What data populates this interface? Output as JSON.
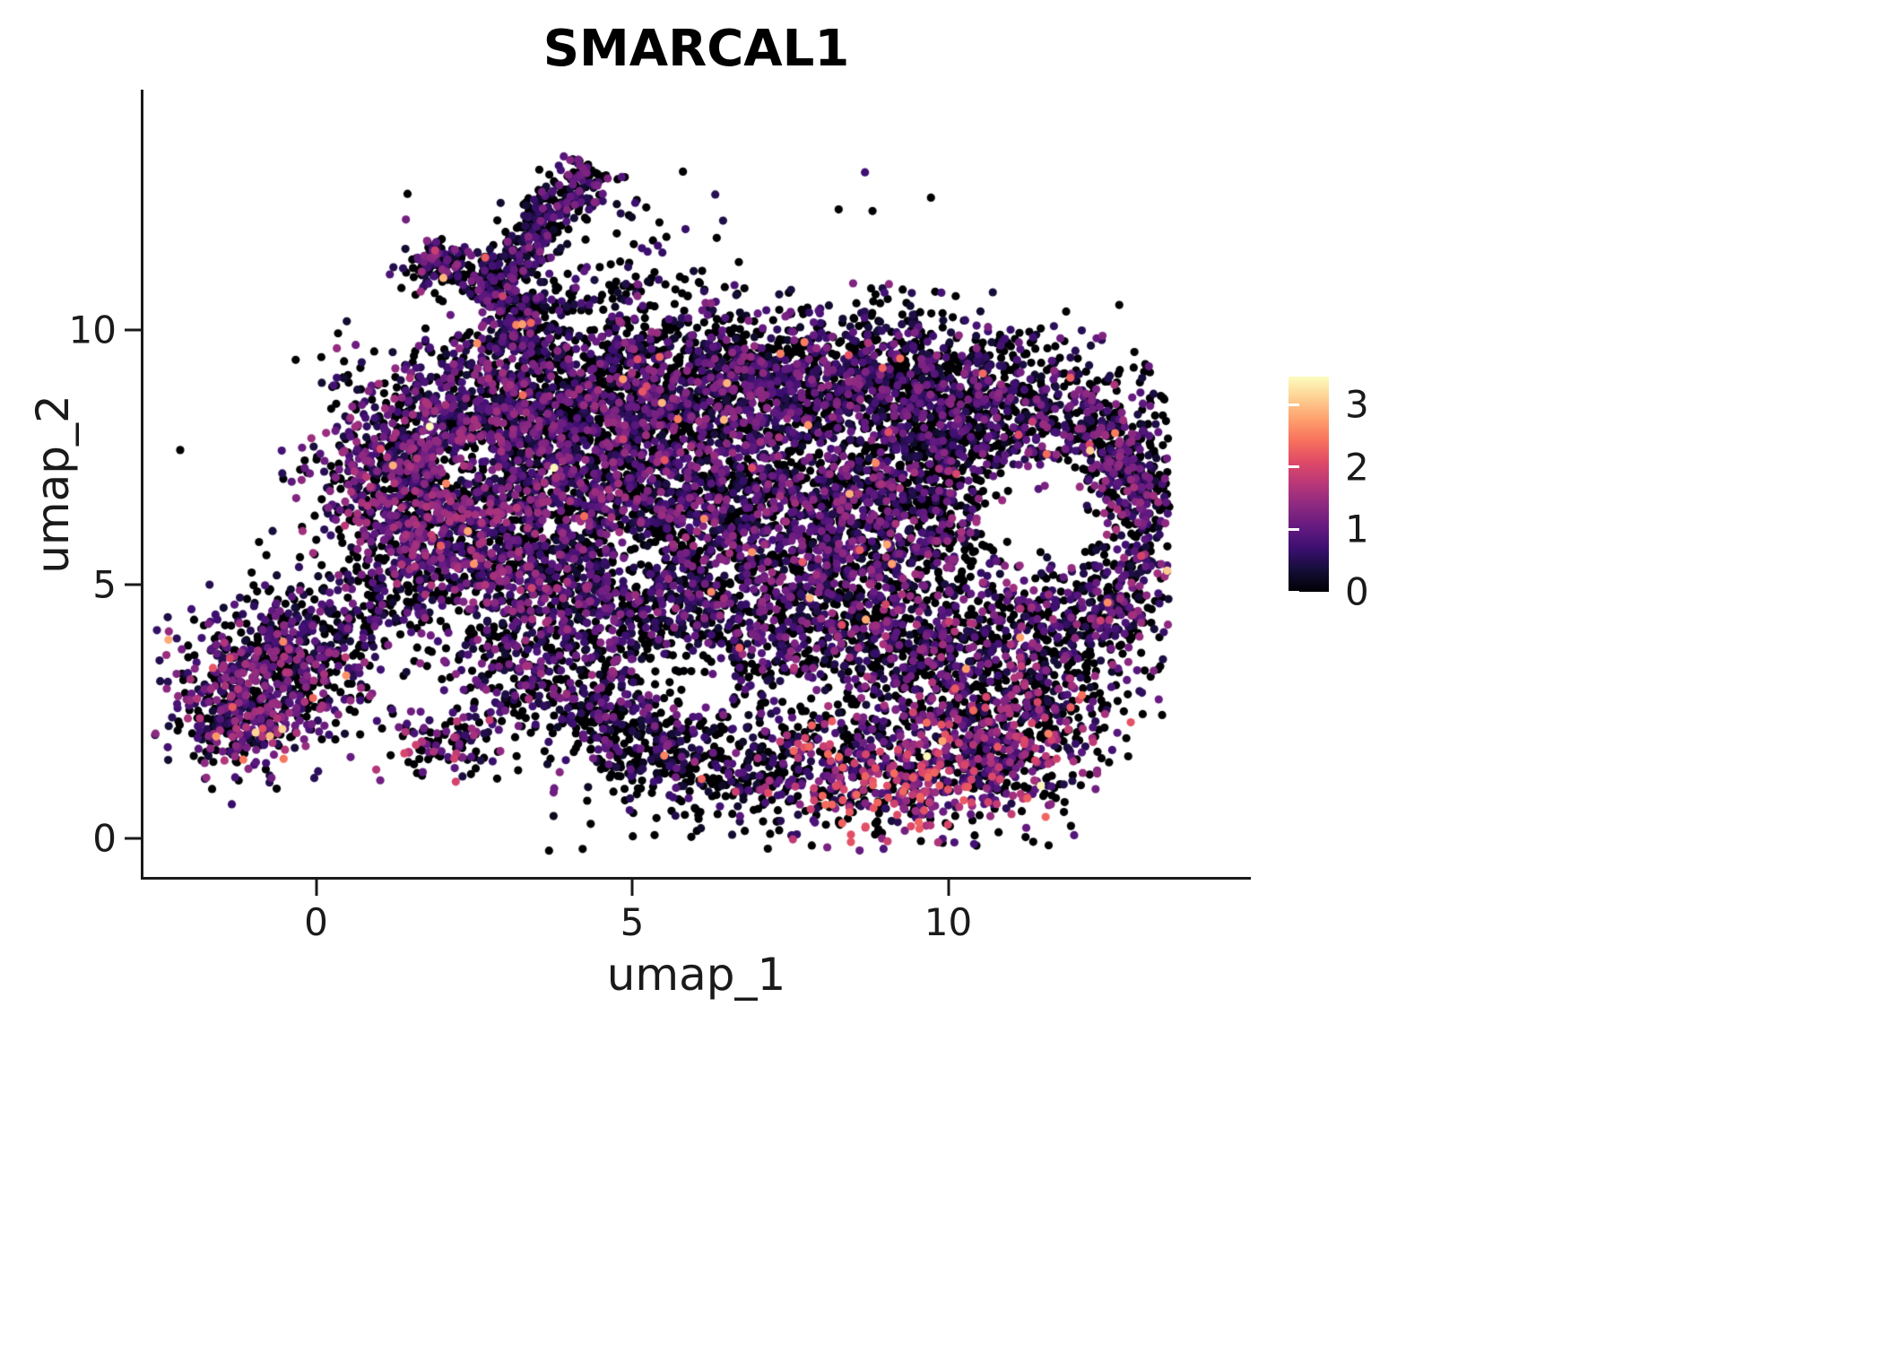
{
  "chart_data": {
    "type": "scatter",
    "title": "SMARCAL1",
    "xlabel": "umap_1",
    "ylabel": "umap_2",
    "x_tick_labels": [
      "0",
      "5",
      "10"
    ],
    "x_tick_values": [
      0,
      5,
      10
    ],
    "y_tick_labels": [
      "0",
      "5",
      "10"
    ],
    "y_tick_values": [
      0,
      5,
      10
    ],
    "xlim": [
      -2.9,
      14.8
    ],
    "ylim": [
      -0.8,
      14.9
    ],
    "grid": false,
    "legend_position": "right",
    "point_radius": 4.6,
    "seed": 42,
    "colorbar": {
      "tick_labels": [
        "0",
        "1",
        "2",
        "3"
      ],
      "tick_values": [
        0,
        1,
        2,
        3
      ],
      "vmax": 3.45,
      "colormap": "magma",
      "stops": [
        [
          0.0,
          "#000004"
        ],
        [
          0.1,
          "#140e36"
        ],
        [
          0.2,
          "#3b0f70"
        ],
        [
          0.3,
          "#641a80"
        ],
        [
          0.4,
          "#8c2981"
        ],
        [
          0.5,
          "#b73779"
        ],
        [
          0.6,
          "#de4968"
        ],
        [
          0.7,
          "#f7705c"
        ],
        [
          0.8,
          "#fe9f6d"
        ],
        [
          0.9,
          "#fecf92"
        ],
        [
          1.0,
          "#fcfdbf"
        ]
      ]
    },
    "bounds": {
      "xmin": -2.55,
      "xmax": 13.5,
      "ymin": -0.25,
      "ymax": 13.6
    },
    "clusters": [
      {
        "type": "gauss",
        "x": -0.95,
        "y": 2.9,
        "sx": 0.75,
        "sy": 0.75,
        "n": 520,
        "p0": 0.38,
        "vmean": 1.0
      },
      {
        "type": "gauss",
        "x": -0.2,
        "y": 3.8,
        "sx": 0.55,
        "sy": 0.5,
        "n": 200,
        "p0": 0.45,
        "vmean": 0.9
      },
      {
        "type": "gauss",
        "x": -1.35,
        "y": 2.2,
        "sx": 0.5,
        "sy": 0.4,
        "n": 150,
        "p0": 0.4,
        "vmean": 1.0
      },
      {
        "type": "gauss",
        "x": -0.3,
        "y": 4.4,
        "sx": 0.8,
        "sy": 0.5,
        "n": 80,
        "p0": 0.6,
        "vmean": 0.6
      },
      {
        "type": "strip",
        "x1": 2.55,
        "y1": 10.55,
        "x2": 4.35,
        "y2": 13.25,
        "sd": 0.22,
        "n": 430,
        "p0": 0.5,
        "vmean": 0.8
      },
      {
        "type": "gauss",
        "x": 1.95,
        "y": 11.3,
        "sx": 0.3,
        "sy": 0.22,
        "n": 130,
        "p0": 0.45,
        "vmean": 0.9
      },
      {
        "type": "strip",
        "x1": 2.9,
        "y1": 9.6,
        "x2": 3.5,
        "y2": 10.7,
        "sd": 0.3,
        "n": 150,
        "p0": 0.5,
        "vmean": 0.8
      },
      {
        "type": "gauss",
        "x": 4.7,
        "y": 11.4,
        "sx": 0.9,
        "sy": 0.8,
        "n": 80,
        "p0": 0.65,
        "vmean": 0.5
      },
      {
        "type": "gauss",
        "x": 4.2,
        "y": 10.3,
        "sx": 1.2,
        "sy": 0.5,
        "n": 90,
        "p0": 0.6,
        "vmean": 0.6
      },
      {
        "type": "gauss",
        "x": 1.3,
        "y": 7.2,
        "sx": 0.7,
        "sy": 0.9,
        "n": 600,
        "p0": 0.42,
        "vmean": 1.0
      },
      {
        "type": "gauss",
        "x": 2.6,
        "y": 8.3,
        "sx": 0.9,
        "sy": 0.8,
        "n": 650,
        "p0": 0.45,
        "vmean": 0.95
      },
      {
        "type": "gauss",
        "x": 4.6,
        "y": 8.8,
        "sx": 1.2,
        "sy": 0.75,
        "n": 800,
        "p0": 0.5,
        "vmean": 0.9
      },
      {
        "type": "gauss",
        "x": 6.8,
        "y": 9.0,
        "sx": 1.2,
        "sy": 0.7,
        "n": 750,
        "p0": 0.55,
        "vmean": 0.85
      },
      {
        "type": "gauss",
        "x": 8.8,
        "y": 9.0,
        "sx": 1.1,
        "sy": 0.7,
        "n": 650,
        "p0": 0.55,
        "vmean": 0.85
      },
      {
        "type": "gauss",
        "x": 10.6,
        "y": 8.6,
        "sx": 1.0,
        "sy": 0.7,
        "n": 550,
        "p0": 0.55,
        "vmean": 0.8
      },
      {
        "type": "gauss",
        "x": 12.2,
        "y": 7.6,
        "sx": 0.7,
        "sy": 0.8,
        "n": 420,
        "p0": 0.5,
        "vmean": 0.9
      },
      {
        "type": "gauss",
        "x": 2.2,
        "y": 6.2,
        "sx": 0.9,
        "sy": 0.9,
        "n": 600,
        "p0": 0.42,
        "vmean": 1.0
      },
      {
        "type": "gauss",
        "x": 4.3,
        "y": 6.6,
        "sx": 1.2,
        "sy": 1.1,
        "n": 850,
        "p0": 0.48,
        "vmean": 0.95
      },
      {
        "type": "gauss",
        "x": 6.5,
        "y": 6.6,
        "sx": 1.3,
        "sy": 1.1,
        "n": 900,
        "p0": 0.5,
        "vmean": 0.9
      },
      {
        "type": "gauss",
        "x": 8.8,
        "y": 6.2,
        "sx": 1.2,
        "sy": 1.1,
        "n": 800,
        "p0": 0.5,
        "vmean": 0.95
      },
      {
        "type": "gauss",
        "x": 10.4,
        "y": 6.9,
        "sx": 0.9,
        "sy": 0.8,
        "n": 450,
        "p0": 0.55,
        "vmean": 0.85
      },
      {
        "type": "gauss",
        "x": 12.85,
        "y": 5.9,
        "sx": 0.38,
        "sy": 1.15,
        "n": 330,
        "p0": 0.5,
        "vmean": 0.95
      },
      {
        "type": "gauss",
        "x": 12.1,
        "y": 4.6,
        "sx": 0.6,
        "sy": 0.6,
        "n": 250,
        "p0": 0.5,
        "vmean": 0.9
      },
      {
        "type": "gauss",
        "x": 3.4,
        "y": 4.6,
        "sx": 1.0,
        "sy": 0.9,
        "n": 550,
        "p0": 0.45,
        "vmean": 0.95
      },
      {
        "type": "gauss",
        "x": 5.6,
        "y": 4.2,
        "sx": 1.2,
        "sy": 0.9,
        "n": 500,
        "p0": 0.55,
        "vmean": 0.8
      },
      {
        "type": "gauss",
        "x": 7.8,
        "y": 4.2,
        "sx": 1.2,
        "sy": 0.9,
        "n": 520,
        "p0": 0.52,
        "vmean": 0.9
      },
      {
        "type": "gauss",
        "x": 9.9,
        "y": 3.7,
        "sx": 0.9,
        "sy": 0.9,
        "n": 450,
        "p0": 0.5,
        "vmean": 1.0
      },
      {
        "type": "gauss",
        "x": 11.4,
        "y": 3.0,
        "sx": 0.8,
        "sy": 0.8,
        "n": 350,
        "p0": 0.5,
        "vmean": 1.0
      },
      {
        "type": "gauss",
        "x": 9.3,
        "y": 1.4,
        "sx": 1.2,
        "sy": 0.75,
        "n": 600,
        "p0": 0.35,
        "vmean": 1.4
      },
      {
        "type": "gauss",
        "x": 7.0,
        "y": 1.3,
        "sx": 1.3,
        "sy": 0.6,
        "n": 350,
        "p0": 0.68,
        "vmean": 0.6
      },
      {
        "type": "gauss",
        "x": 5.0,
        "y": 2.4,
        "sx": 0.7,
        "sy": 0.6,
        "n": 220,
        "p0": 0.6,
        "vmean": 0.8
      },
      {
        "type": "gauss",
        "x": 10.9,
        "y": 1.8,
        "sx": 0.7,
        "sy": 0.6,
        "n": 280,
        "p0": 0.45,
        "vmean": 1.2
      },
      {
        "type": "gauss",
        "x": 2.0,
        "y": 1.95,
        "sx": 0.45,
        "sy": 0.35,
        "n": 110,
        "p0": 0.5,
        "vmean": 1.2
      },
      {
        "type": "gauss",
        "x": 3.3,
        "y": 2.9,
        "sx": 0.5,
        "sy": 0.4,
        "n": 90,
        "p0": 0.6,
        "vmean": 0.8
      },
      {
        "type": "strip",
        "x1": 3.8,
        "y1": 2.8,
        "x2": 6.0,
        "y2": 1.3,
        "sd": 0.3,
        "n": 130,
        "p0": 0.6,
        "vmean": 0.7
      },
      {
        "type": "gauss",
        "x": 1.2,
        "y": 4.9,
        "sx": 0.5,
        "sy": 0.5,
        "n": 90,
        "p0": 0.6,
        "vmean": 0.7
      },
      {
        "type": "gauss",
        "x": 6.5,
        "y": 6.0,
        "sx": 3.5,
        "sy": 2.8,
        "n": 260,
        "p0": 0.6,
        "vmean": 0.7
      },
      {
        "type": "gauss",
        "x": 12.95,
        "y": 7.1,
        "sx": 0.4,
        "sy": 0.5,
        "n": 150,
        "p0": 0.5,
        "vmean": 0.9
      }
    ],
    "holes": [
      {
        "x": 11.45,
        "y": 6.35,
        "r": 1.0,
        "keep": 0.1
      },
      {
        "x": 11.45,
        "y": 6.35,
        "r": 1.5,
        "keep": 0.55
      },
      {
        "x": 5.9,
        "y": 3.15,
        "r": 0.75,
        "keep": 0.3
      },
      {
        "x": 2.4,
        "y": 7.35,
        "r": 0.5,
        "keep": 0.35
      },
      {
        "x": 5.05,
        "y": 5.5,
        "r": 0.55,
        "keep": 0.4
      },
      {
        "x": 7.6,
        "y": 2.75,
        "r": 0.55,
        "keep": 0.5
      }
    ]
  }
}
